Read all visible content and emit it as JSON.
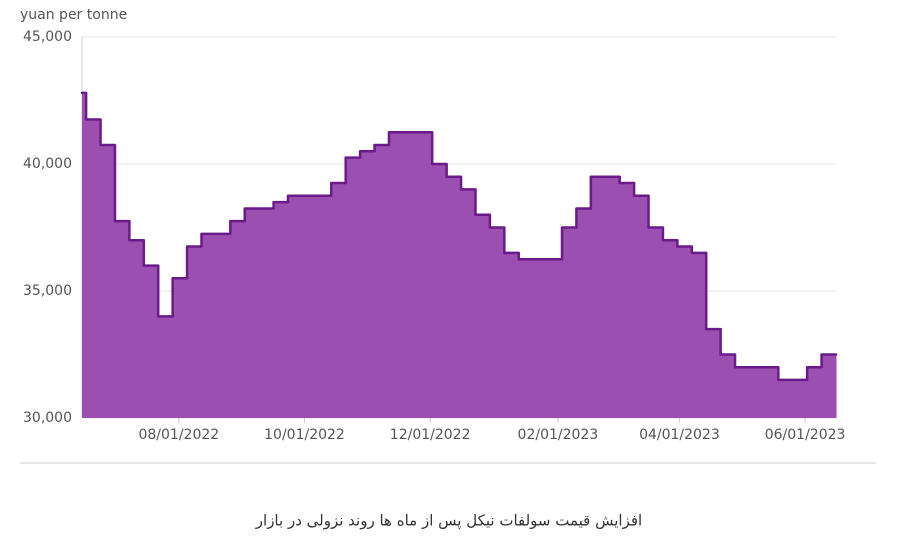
{
  "chart_data": {
    "type": "step-area",
    "y_axis_label": "yuan per tonne",
    "caption": "افزایش قیمت سولفات نیکل پس از ماه ها روند نزولی در بازار",
    "x": [
      "2022-06-15",
      "2022-06-17",
      "2022-06-24",
      "2022-07-01",
      "2022-07-08",
      "2022-07-15",
      "2022-07-22",
      "2022-07-29",
      "2022-08-05",
      "2022-08-12",
      "2022-08-26",
      "2022-09-02",
      "2022-09-16",
      "2022-09-23",
      "2022-10-14",
      "2022-10-21",
      "2022-10-28",
      "2022-11-04",
      "2022-11-11",
      "2022-12-02",
      "2022-12-09",
      "2022-12-16",
      "2022-12-23",
      "2022-12-30",
      "2023-01-06",
      "2023-01-13",
      "2023-02-03",
      "2023-02-10",
      "2023-02-17",
      "2023-03-03",
      "2023-03-10",
      "2023-03-17",
      "2023-03-24",
      "2023-03-31",
      "2023-04-07",
      "2023-04-14",
      "2023-04-21",
      "2023-04-28",
      "2023-05-19",
      "2023-06-02",
      "2023-06-09"
    ],
    "values": [
      42800,
      41750,
      40750,
      37750,
      37000,
      36000,
      34000,
      35500,
      36750,
      37250,
      37750,
      38250,
      38500,
      38750,
      39250,
      40250,
      40500,
      40750,
      41250,
      40000,
      39500,
      39000,
      38000,
      37500,
      36500,
      36250,
      37500,
      38250,
      39500,
      39250,
      38750,
      37500,
      37000,
      36750,
      36500,
      33500,
      32500,
      32000,
      31500,
      32000,
      32500
    ],
    "fill_color": "#9b4fb0",
    "line_color": "#6a1b8a",
    "xlim": [
      "2022-06-15",
      "2023-06-16"
    ],
    "xticks": [
      {
        "value": "2022-08-01",
        "label": "08/01/2022"
      },
      {
        "value": "2022-10-01",
        "label": "10/01/2022"
      },
      {
        "value": "2022-12-01",
        "label": "12/01/2022"
      },
      {
        "value": "2023-02-01",
        "label": "02/01/2023"
      },
      {
        "value": "2023-04-01",
        "label": "04/01/2023"
      },
      {
        "value": "2023-06-01",
        "label": "06/01/2023"
      }
    ],
    "ylim": [
      30000,
      45000
    ],
    "yticks": [
      {
        "value": 30000,
        "label": "30,000"
      },
      {
        "value": 35000,
        "label": "35,000"
      },
      {
        "value": 40000,
        "label": "40,000"
      },
      {
        "value": 45000,
        "label": "45,000"
      }
    ],
    "grid": true
  }
}
